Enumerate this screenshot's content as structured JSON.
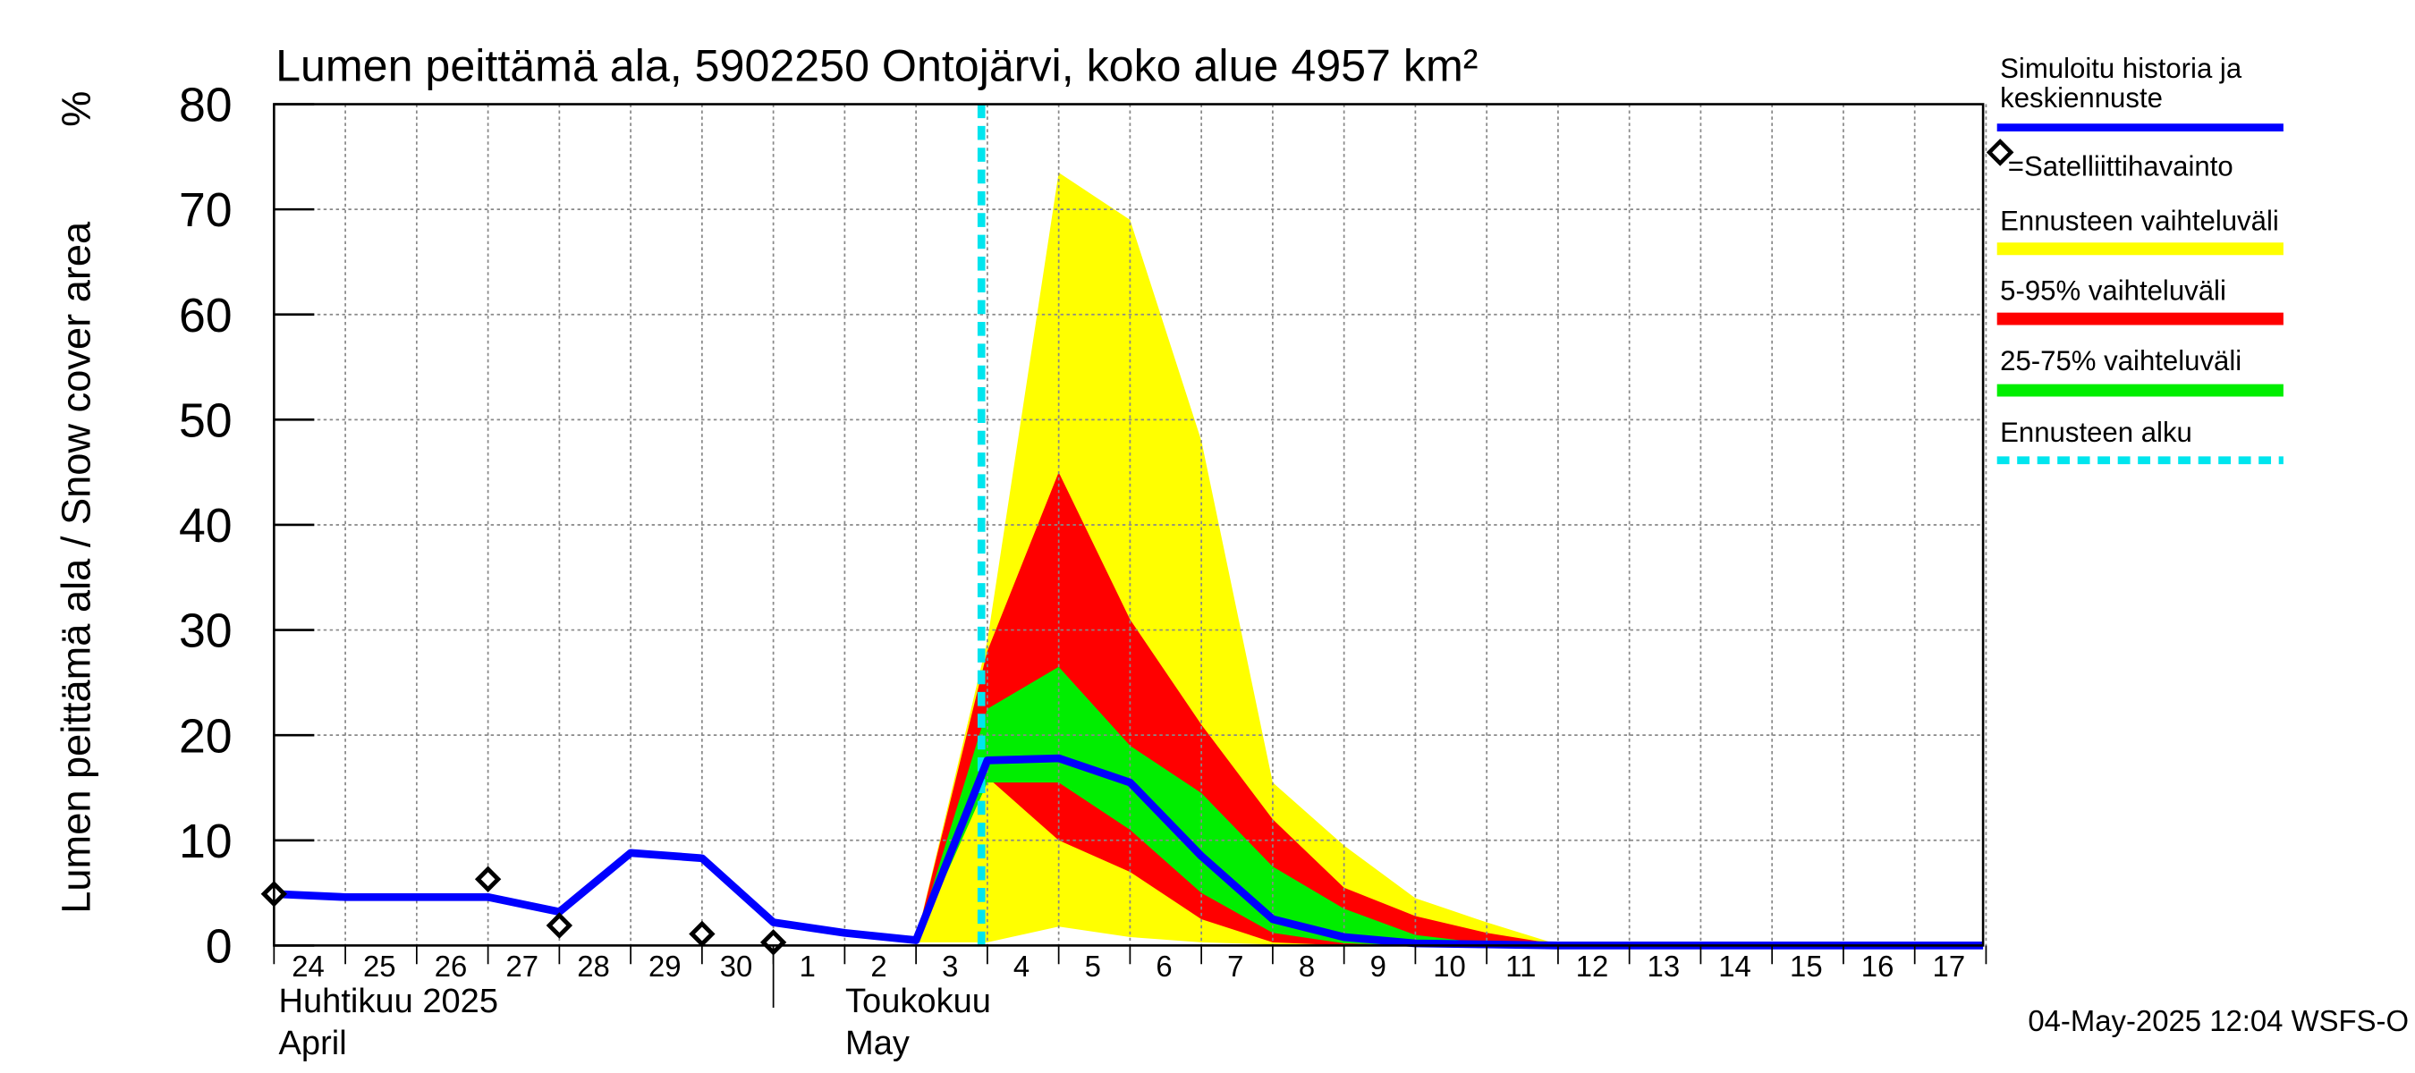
{
  "chart_data": {
    "type": "area",
    "title": "Lumen peittämä ala, 5902250 Ontojärvi, koko alue 4957 km²",
    "ylabel": "Lumen peittämä ala / Snow cover area",
    "yunit": "%",
    "ylim": [
      0,
      80
    ],
    "yticks": [
      0,
      10,
      20,
      30,
      40,
      50,
      60,
      70,
      80
    ],
    "xlim": [
      "2025-04-24",
      "2025-05-17T23:00"
    ],
    "x_day_labels": [
      "24",
      "25",
      "26",
      "27",
      "28",
      "29",
      "30",
      "1",
      "2",
      "3",
      "4",
      "5",
      "6",
      "7",
      "8",
      "9",
      "10",
      "11",
      "12",
      "13",
      "14",
      "15",
      "16",
      "17"
    ],
    "month_labels": [
      {
        "fi": "Huhtikuu  2025",
        "en": "April"
      },
      {
        "fi": "Toukokuu",
        "en": "May"
      }
    ],
    "grid": true,
    "legend_position": "right",
    "forecast_start": "2025-05-03T22:00",
    "series": [
      {
        "name": "Simuloitu historia ja keskiennuste",
        "kind": "line",
        "color": "#0000ff",
        "points": [
          [
            "2025-04-24",
            4.9
          ],
          [
            "2025-04-25",
            4.6
          ],
          [
            "2025-04-26",
            4.6
          ],
          [
            "2025-04-27",
            4.6
          ],
          [
            "2025-04-28",
            3.2
          ],
          [
            "2025-04-29",
            8.8
          ],
          [
            "2025-04-30",
            8.3
          ],
          [
            "2025-05-01",
            2.2
          ],
          [
            "2025-05-02",
            1.2
          ],
          [
            "2025-05-03",
            0.5
          ],
          [
            "2025-05-04",
            17.6
          ],
          [
            "2025-05-05",
            17.8
          ],
          [
            "2025-05-06",
            15.5
          ],
          [
            "2025-05-07",
            8.5
          ],
          [
            "2025-05-08",
            2.5
          ],
          [
            "2025-05-09",
            0.8
          ],
          [
            "2025-05-10",
            0.2
          ],
          [
            "2025-05-11",
            0.1
          ],
          [
            "2025-05-12",
            0.0
          ],
          [
            "2025-05-13",
            0.0
          ],
          [
            "2025-05-14",
            0.0
          ],
          [
            "2025-05-15",
            0.0
          ],
          [
            "2025-05-16",
            0.0
          ],
          [
            "2025-05-17",
            0.0
          ],
          [
            "2025-05-17T23:00",
            0.0
          ]
        ]
      },
      {
        "name": "=Satelliittihavainto",
        "kind": "markers",
        "points": [
          [
            "2025-04-24",
            4.9
          ],
          [
            "2025-04-27",
            6.3
          ],
          [
            "2025-04-28",
            1.9
          ],
          [
            "2025-04-30",
            1.1
          ],
          [
            "2025-05-01",
            0.3
          ]
        ]
      },
      {
        "name": "Ennusteen vaihteluväli",
        "kind": "band",
        "color": "#ffff00",
        "x": [
          "2025-05-03",
          "2025-05-04",
          "2025-05-05",
          "2025-05-06",
          "2025-05-07",
          "2025-05-08",
          "2025-05-09",
          "2025-05-10",
          "2025-05-11",
          "2025-05-12"
        ],
        "upper": [
          0.5,
          29,
          73.5,
          69,
          48,
          15.5,
          9.5,
          4.5,
          2.2,
          0.1
        ],
        "lower": [
          0.3,
          0.3,
          1.8,
          0.8,
          0.3,
          0.1,
          0,
          0,
          0,
          0
        ]
      },
      {
        "name": "5-95% vaihteluväli",
        "kind": "band",
        "color": "#ff0000",
        "x": [
          "2025-05-03",
          "2025-05-04",
          "2025-05-05",
          "2025-05-06",
          "2025-05-07",
          "2025-05-08",
          "2025-05-09",
          "2025-05-10",
          "2025-05-11",
          "2025-05-12"
        ],
        "upper": [
          0.5,
          28,
          45,
          31,
          21,
          12,
          5.5,
          2.8,
          1.2,
          0.1
        ],
        "lower": [
          0.3,
          16,
          10,
          7,
          2.5,
          0.3,
          0,
          0,
          0,
          0
        ]
      },
      {
        "name": "25-75% vaihteluväli",
        "kind": "band",
        "color": "#00ee00",
        "x": [
          "2025-05-03",
          "2025-05-04",
          "2025-05-05",
          "2025-05-06",
          "2025-05-07",
          "2025-05-08",
          "2025-05-09",
          "2025-05-10",
          "2025-05-11"
        ],
        "upper": [
          0.5,
          22.5,
          26.5,
          19,
          14.5,
          7.5,
          3.5,
          1.0,
          0.2
        ],
        "lower": [
          0.3,
          15.5,
          15.5,
          11,
          5,
          1.2,
          0.2,
          0,
          0
        ]
      },
      {
        "name": "Ennusteen alku",
        "kind": "vline",
        "color": "#00e5ee"
      }
    ]
  },
  "footer": {
    "timestamp": "04-May-2025 12:04 WSFS-O"
  }
}
